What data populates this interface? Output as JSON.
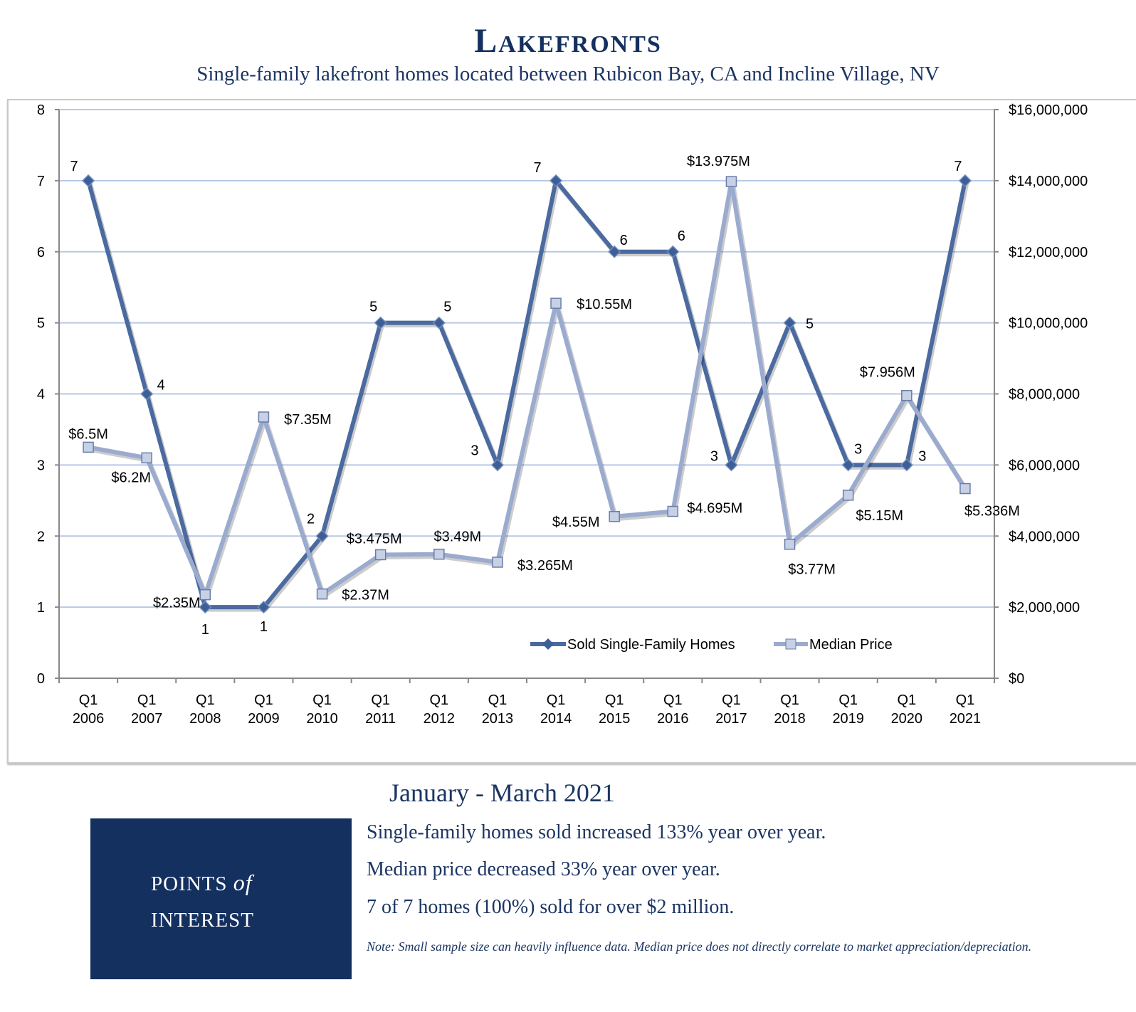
{
  "header": {
    "title": "Lakefronts",
    "subtitle": "Single-family lakefront homes located between Rubicon Bay, CA and Incline Village, NV"
  },
  "chart_data": {
    "type": "line",
    "categories": [
      "Q1 2006",
      "Q1 2007",
      "Q1 2008",
      "Q1 2009",
      "Q1 2010",
      "Q1 2011",
      "Q1 2012",
      "Q1 2013",
      "Q1 2014",
      "Q1 2015",
      "Q1 2016",
      "Q1 2017",
      "Q1 2018",
      "Q1 2019",
      "Q1 2020",
      "Q1 2021"
    ],
    "category_lines": [
      [
        "Q1",
        "2006"
      ],
      [
        "Q1",
        "2007"
      ],
      [
        "Q1",
        "2008"
      ],
      [
        "Q1",
        "2009"
      ],
      [
        "Q1",
        "2010"
      ],
      [
        "Q1",
        "2011"
      ],
      [
        "Q1",
        "2012"
      ],
      [
        "Q1",
        "2013"
      ],
      [
        "Q1",
        "2014"
      ],
      [
        "Q1",
        "2015"
      ],
      [
        "Q1",
        "2016"
      ],
      [
        "Q1",
        "2017"
      ],
      [
        "Q1",
        "2018"
      ],
      [
        "Q1",
        "2019"
      ],
      [
        "Q1",
        "2020"
      ],
      [
        "Q1",
        "2021"
      ]
    ],
    "series": [
      {
        "name": "Sold Single-Family Homes",
        "axis": "left",
        "color": "#4a6aa0",
        "marker": "diamond",
        "values": [
          7,
          4,
          1,
          1,
          2,
          5,
          5,
          3,
          7,
          6,
          6,
          3,
          5,
          3,
          3,
          7
        ],
        "labels": [
          "7",
          "4",
          "1",
          "1",
          "2",
          "5",
          "5",
          "3",
          "7",
          "6",
          "6",
          "3",
          "5",
          "3",
          "3",
          "7"
        ]
      },
      {
        "name": "Median Price",
        "axis": "right",
        "color": "#9aabcf",
        "marker": "square",
        "values": [
          6500000,
          6200000,
          2350000,
          7350000,
          2370000,
          3475000,
          3490000,
          3265000,
          10550000,
          4550000,
          4695000,
          13975000,
          3770000,
          5150000,
          7956000,
          5336000
        ],
        "labels": [
          "$6.5M",
          "$6.2M",
          "$2.35M",
          "$7.35M",
          "$2.37M",
          "$3.475M",
          "$3.49M",
          "$3.265M",
          "$10.55M",
          "$4.55M",
          "$4.695M",
          "$13.975M",
          "$3.77M",
          "$5.15M",
          "$7.956M",
          "$5.336M"
        ]
      }
    ],
    "y_left": {
      "range": [
        0,
        8
      ],
      "ticks": [
        "0",
        "1",
        "2",
        "3",
        "4",
        "5",
        "6",
        "7",
        "8"
      ]
    },
    "y_right": {
      "range": [
        0,
        16000000
      ],
      "ticks": [
        "$0",
        "$2,000,000",
        "$4,000,000",
        "$6,000,000",
        "$8,000,000",
        "$10,000,000",
        "$12,000,000",
        "$14,000,000",
        "$16,000,000"
      ]
    },
    "grid": true,
    "grid_color": "#b8c8e6",
    "legend_placement": "bottom-right inside"
  },
  "footer": {
    "period": "January - March 2021",
    "poi_line1": "POINTS",
    "poi_of": "of",
    "poi_line2": "INTEREST",
    "points": [
      "Single-family homes sold increased 133% year over year.",
      "Median price decreased 33% year over year.",
      "7 of 7 homes (100%) sold for over $2 million."
    ],
    "note": "Note: Small sample size can heavily influence data. Median price does not directly correlate to market appreciation/depreciation.",
    "box_color": "#14305f"
  }
}
